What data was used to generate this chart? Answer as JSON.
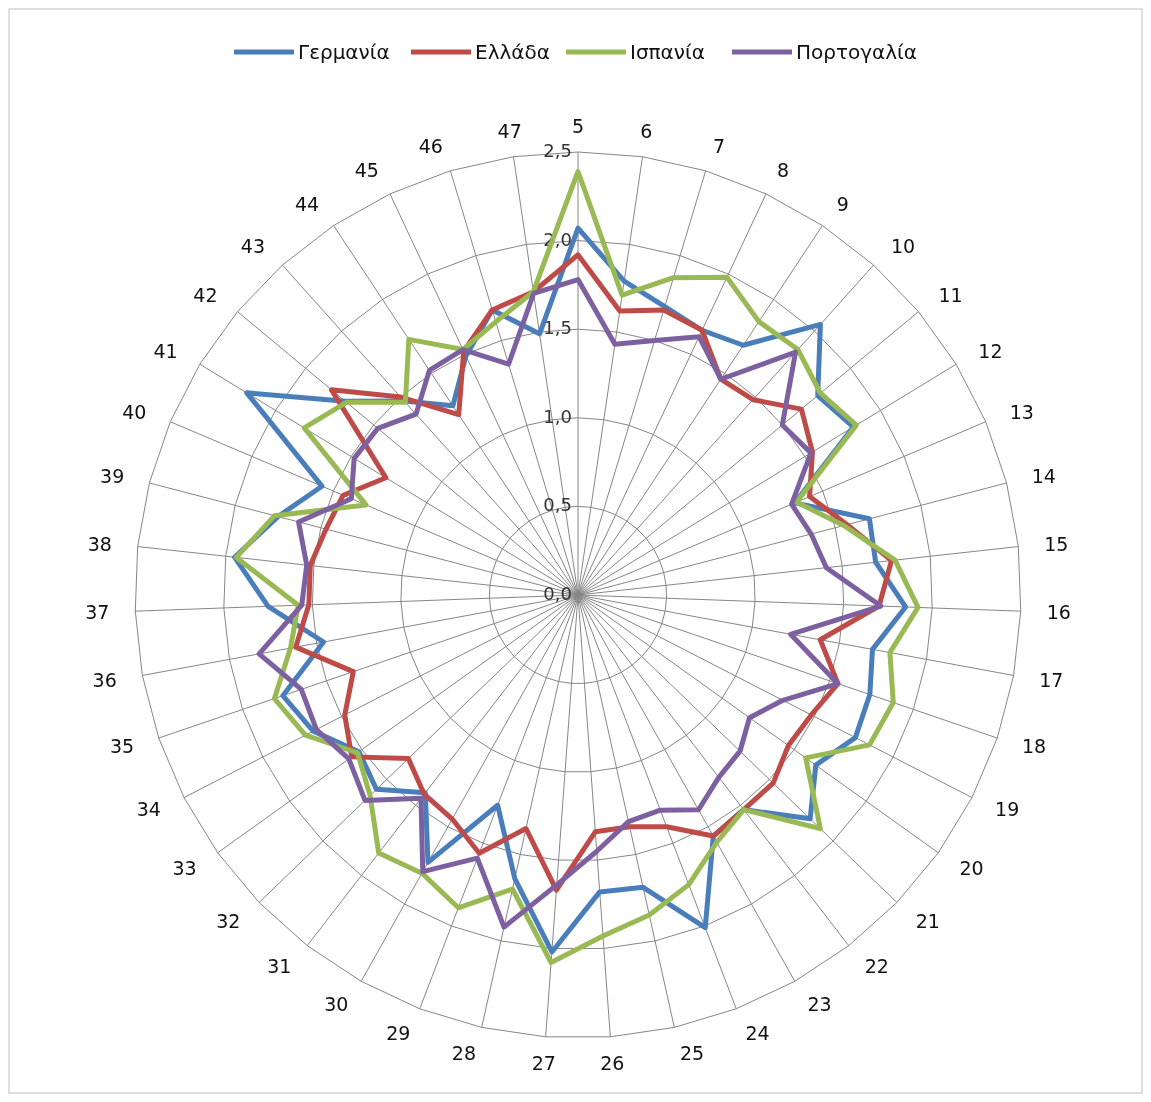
{
  "chart_data": {
    "type": "radar",
    "categories": [
      "5",
      "6",
      "7",
      "8",
      "9",
      "10",
      "11",
      "12",
      "13",
      "14",
      "15",
      "16",
      "17",
      "18",
      "19",
      "20",
      "21",
      "22",
      "23",
      "24",
      "25",
      "26",
      "27",
      "28",
      "29",
      "30",
      "31",
      "32",
      "33",
      "34",
      "35",
      "36",
      "37",
      "38",
      "39",
      "40",
      "41",
      "42",
      "43",
      "44",
      "45",
      "46",
      "47"
    ],
    "series": [
      {
        "name": "Γερμανία",
        "color": "#4a7ebb",
        "values": [
          2.07,
          1.79,
          1.7,
          1.65,
          1.69,
          2.05,
          1.76,
          1.82,
          1.33,
          1.7,
          1.69,
          1.85,
          1.69,
          1.74,
          1.76,
          1.65,
          1.82,
          1.53,
          1.56,
          2.01,
          1.69,
          1.68,
          2.02,
          1.64,
          1.27,
          1.73,
          1.41,
          1.58,
          1.52,
          1.68,
          1.76,
          1.46,
          1.75,
          1.95,
          1.75,
          1.57,
          2.19,
          1.71,
          1.47,
          1.28,
          1.49,
          1.68,
          1.49
        ]
      },
      {
        "name": "Ελλάδα",
        "color": "#be4b48",
        "values": [
          1.92,
          1.62,
          1.68,
          1.65,
          1.46,
          1.48,
          1.64,
          1.55,
          1.42,
          1.57,
          1.78,
          1.7,
          1.39,
          1.55,
          1.48,
          1.46,
          1.53,
          1.53,
          1.56,
          1.4,
          1.34,
          1.34,
          1.67,
          1.35,
          1.56,
          1.45,
          1.42,
          1.33,
          1.57,
          1.48,
          1.34,
          1.62,
          1.52,
          1.52,
          1.47,
          1.44,
          1.27,
          1.81,
          1.5,
          1.22,
          1.52,
          1.68,
          1.73
        ]
      },
      {
        "name": "Ισπανία",
        "color": "#98b954",
        "values": [
          2.39,
          1.71,
          1.87,
          1.98,
          1.85,
          1.86,
          1.78,
          1.84,
          1.34,
          1.55,
          1.8,
          1.92,
          1.79,
          1.88,
          1.85,
          1.58,
          1.9,
          1.53,
          1.6,
          1.75,
          1.85,
          1.93,
          2.08,
          1.7,
          1.89,
          1.8,
          1.84,
          1.63,
          1.53,
          1.73,
          1.81,
          1.65,
          1.58,
          1.94,
          1.77,
          1.3,
          1.81,
          1.7,
          1.46,
          1.73,
          1.53,
          1.61,
          1.73
        ]
      },
      {
        "name": "Πορτογαλία",
        "color": "#7d60a0",
        "values": [
          1.78,
          1.43,
          1.5,
          1.61,
          1.46,
          1.84,
          1.5,
          1.54,
          1.31,
          1.36,
          1.41,
          1.71,
          1.22,
          1.55,
          1.3,
          1.19,
          1.27,
          1.3,
          1.39,
          1.3,
          1.31,
          1.45,
          1.64,
          1.92,
          1.59,
          1.79,
          1.45,
          1.67,
          1.59,
          1.66,
          1.65,
          1.83,
          1.56,
          1.54,
          1.63,
          1.39,
          1.48,
          1.47,
          1.37,
          1.52,
          1.53,
          1.36,
          1.72
        ]
      }
    ],
    "ylim": [
      0,
      2.5
    ],
    "yticks": [
      {
        "value": 0,
        "label": "0,0"
      },
      {
        "value": 0.5,
        "label": "0,5"
      },
      {
        "value": 1,
        "label": "1,0"
      },
      {
        "value": 1.5,
        "label": "1,5"
      },
      {
        "value": 2,
        "label": "2,0"
      },
      {
        "value": 2.5,
        "label": "2,5"
      }
    ],
    "grid": true,
    "legend": "top"
  }
}
